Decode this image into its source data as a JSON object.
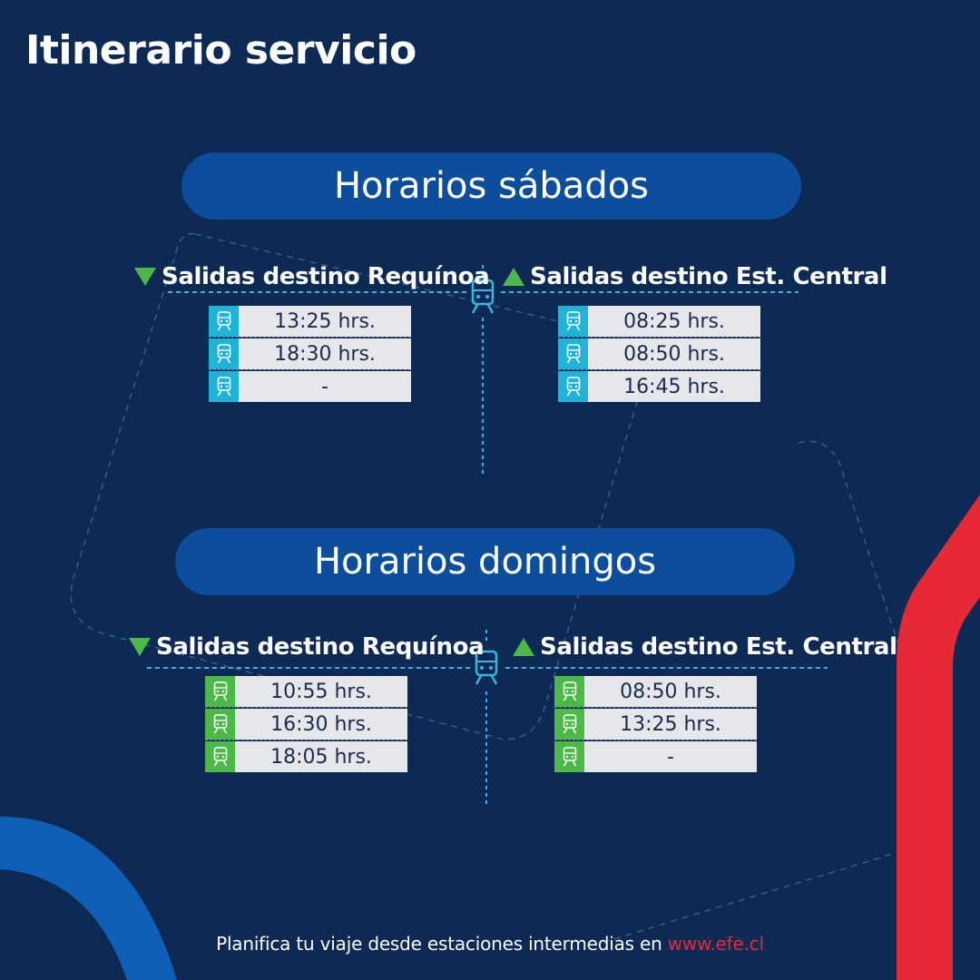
{
  "title": "Itinerario servicio",
  "saturday": {
    "heading": "Horarios sábados",
    "left": {
      "label": "Salidas destino Requínoa",
      "times": [
        "13:25 hrs.",
        "18:30 hrs.",
        "-"
      ]
    },
    "right": {
      "label": "Salidas destino Est. Central",
      "times": [
        "08:25 hrs.",
        "08:50 hrs.",
        "16:45 hrs."
      ]
    }
  },
  "sunday": {
    "heading": "Horarios domingos",
    "left": {
      "label": "Salidas destino Requínoa",
      "times": [
        "10:55 hrs.",
        "16:30 hrs.",
        "18:05 hrs."
      ]
    },
    "right": {
      "label": "Salidas destino Est. Central",
      "times": [
        "08:50 hrs.",
        "13:25 hrs.",
        "-"
      ]
    }
  },
  "footer": {
    "text": "Planifica tu viaje desde estaciones intermedias en",
    "link": "www.efe.cl"
  },
  "icons": {
    "row": "train-icon",
    "divider": "train-icon",
    "down": "triangle-down-icon",
    "up": "triangle-up-icon"
  },
  "colors": {
    "background": "#0d2a55",
    "pill": "#0c4e9c",
    "saturday_icon_bg": "#1fb3da",
    "sunday_icon_bg": "#4cb848",
    "accent_red": "#e52a35",
    "arrow": "#4cb848"
  }
}
